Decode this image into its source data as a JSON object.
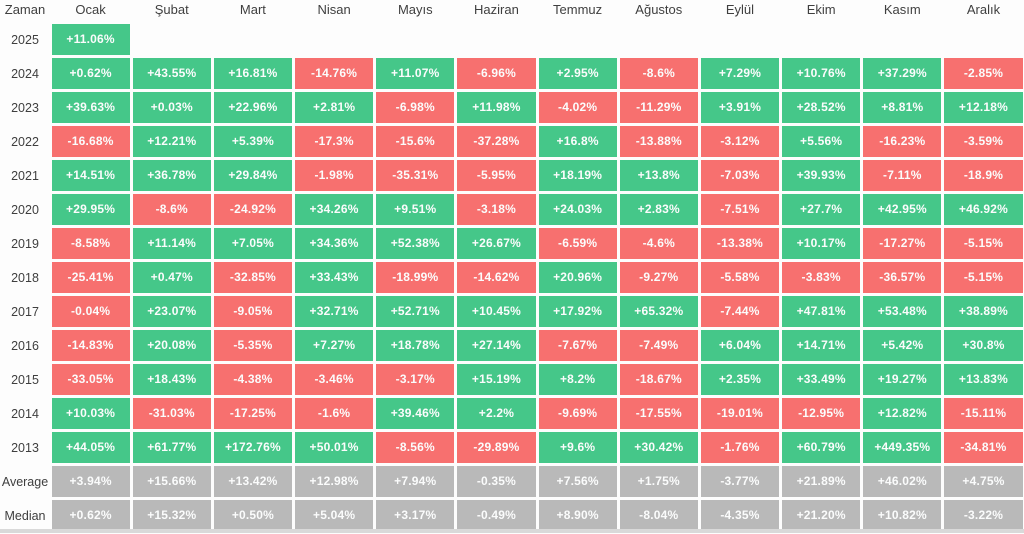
{
  "colors": {
    "positive": "#45c789",
    "negative": "#f7706f",
    "summary": "#b9b9b9",
    "cell_text": "#fbfcfc",
    "label_text": "#3f3f3f",
    "page_background": "#fdfdfd"
  },
  "chart_data": {
    "type": "heatmap",
    "title": "Monthly percentage returns by year (Turkish month labels)",
    "corner_label": "Zaman",
    "columns": [
      "Ocak",
      "Şubat",
      "Mart",
      "Nisan",
      "Mayıs",
      "Haziran",
      "Temmuz",
      "Ağustos",
      "Eylül",
      "Ekim",
      "Kasım",
      "Aralık"
    ],
    "rows": [
      {
        "label": "2025",
        "kind": "year",
        "cells": [
          "+11.06%",
          "",
          "",
          "",
          "",
          "",
          "",
          "",
          "",
          "",
          "",
          ""
        ]
      },
      {
        "label": "2024",
        "kind": "year",
        "cells": [
          "+0.62%",
          "+43.55%",
          "+16.81%",
          "-14.76%",
          "+11.07%",
          "-6.96%",
          "+2.95%",
          "-8.6%",
          "+7.29%",
          "+10.76%",
          "+37.29%",
          "-2.85%"
        ]
      },
      {
        "label": "2023",
        "kind": "year",
        "cells": [
          "+39.63%",
          "+0.03%",
          "+22.96%",
          "+2.81%",
          "-6.98%",
          "+11.98%",
          "-4.02%",
          "-11.29%",
          "+3.91%",
          "+28.52%",
          "+8.81%",
          "+12.18%"
        ]
      },
      {
        "label": "2022",
        "kind": "year",
        "cells": [
          "-16.68%",
          "+12.21%",
          "+5.39%",
          "-17.3%",
          "-15.6%",
          "-37.28%",
          "+16.8%",
          "-13.88%",
          "-3.12%",
          "+5.56%",
          "-16.23%",
          "-3.59%"
        ]
      },
      {
        "label": "2021",
        "kind": "year",
        "cells": [
          "+14.51%",
          "+36.78%",
          "+29.84%",
          "-1.98%",
          "-35.31%",
          "-5.95%",
          "+18.19%",
          "+13.8%",
          "-7.03%",
          "+39.93%",
          "-7.11%",
          "-18.9%"
        ]
      },
      {
        "label": "2020",
        "kind": "year",
        "cells": [
          "+29.95%",
          "-8.6%",
          "-24.92%",
          "+34.26%",
          "+9.51%",
          "-3.18%",
          "+24.03%",
          "+2.83%",
          "-7.51%",
          "+27.7%",
          "+42.95%",
          "+46.92%"
        ]
      },
      {
        "label": "2019",
        "kind": "year",
        "cells": [
          "-8.58%",
          "+11.14%",
          "+7.05%",
          "+34.36%",
          "+52.38%",
          "+26.67%",
          "-6.59%",
          "-4.6%",
          "-13.38%",
          "+10.17%",
          "-17.27%",
          "-5.15%"
        ]
      },
      {
        "label": "2018",
        "kind": "year",
        "cells": [
          "-25.41%",
          "+0.47%",
          "-32.85%",
          "+33.43%",
          "-18.99%",
          "-14.62%",
          "+20.96%",
          "-9.27%",
          "-5.58%",
          "-3.83%",
          "-36.57%",
          "-5.15%"
        ]
      },
      {
        "label": "2017",
        "kind": "year",
        "cells": [
          "-0.04%",
          "+23.07%",
          "-9.05%",
          "+32.71%",
          "+52.71%",
          "+10.45%",
          "+17.92%",
          "+65.32%",
          "-7.44%",
          "+47.81%",
          "+53.48%",
          "+38.89%"
        ]
      },
      {
        "label": "2016",
        "kind": "year",
        "cells": [
          "-14.83%",
          "+20.08%",
          "-5.35%",
          "+7.27%",
          "+18.78%",
          "+27.14%",
          "-7.67%",
          "-7.49%",
          "+6.04%",
          "+14.71%",
          "+5.42%",
          "+30.8%"
        ]
      },
      {
        "label": "2015",
        "kind": "year",
        "cells": [
          "-33.05%",
          "+18.43%",
          "-4.38%",
          "-3.46%",
          "-3.17%",
          "+15.19%",
          "+8.2%",
          "-18.67%",
          "+2.35%",
          "+33.49%",
          "+19.27%",
          "+13.83%"
        ]
      },
      {
        "label": "2014",
        "kind": "year",
        "cells": [
          "+10.03%",
          "-31.03%",
          "-17.25%",
          "-1.6%",
          "+39.46%",
          "+2.2%",
          "-9.69%",
          "-17.55%",
          "-19.01%",
          "-12.95%",
          "+12.82%",
          "-15.11%"
        ]
      },
      {
        "label": "2013",
        "kind": "year",
        "cells": [
          "+44.05%",
          "+61.77%",
          "+172.76%",
          "+50.01%",
          "-8.56%",
          "-29.89%",
          "+9.6%",
          "+30.42%",
          "-1.76%",
          "+60.79%",
          "+449.35%",
          "-34.81%"
        ]
      },
      {
        "label": "Average",
        "kind": "summary",
        "cells": [
          "+3.94%",
          "+15.66%",
          "+13.42%",
          "+12.98%",
          "+7.94%",
          "-0.35%",
          "+7.56%",
          "+1.75%",
          "-3.77%",
          "+21.89%",
          "+46.02%",
          "+4.75%"
        ]
      },
      {
        "label": "Median",
        "kind": "summary",
        "cells": [
          "+0.62%",
          "+15.32%",
          "+0.50%",
          "+5.04%",
          "+3.17%",
          "-0.49%",
          "+8.90%",
          "-8.04%",
          "-4.35%",
          "+21.20%",
          "+10.82%",
          "-3.22%"
        ]
      }
    ]
  }
}
